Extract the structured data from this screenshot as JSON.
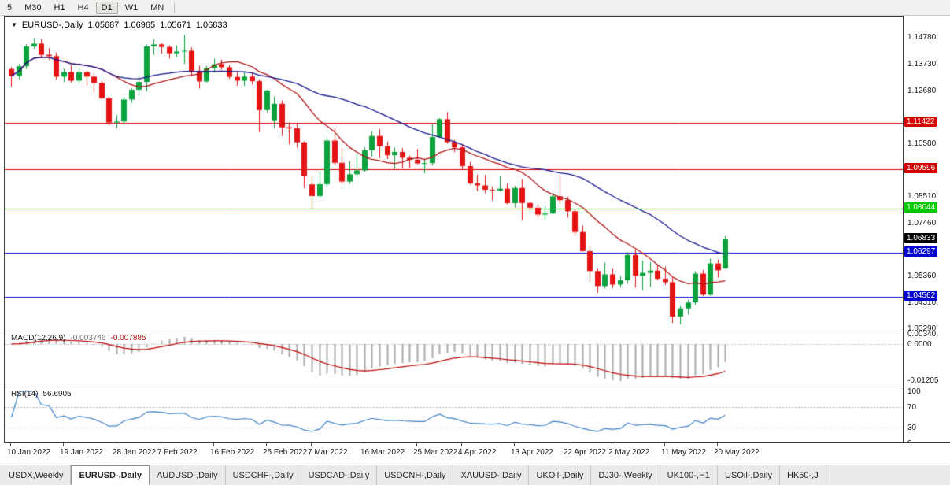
{
  "toolbar": {
    "timeframes": [
      "5",
      "M30",
      "H1",
      "H4",
      "D1",
      "W1",
      "MN"
    ],
    "active": "D1"
  },
  "icons": {
    "chart_menu": "▼"
  },
  "chart": {
    "title": {
      "symbol": "EURUSD-,Daily",
      "open": "1.05687",
      "high": "1.06965",
      "low": "1.05671",
      "close": "1.06833"
    },
    "price_axis": {
      "plain_labels": [
        {
          "text": "1.14780",
          "price": 1.1478
        },
        {
          "text": "1.13730",
          "price": 1.1373
        },
        {
          "text": "1.12680",
          "price": 1.1268
        },
        {
          "text": "1.10580",
          "price": 1.1058
        },
        {
          "text": "1.08510",
          "price": 1.0851
        },
        {
          "text": "1.07460",
          "price": 1.0746
        },
        {
          "text": "1.05360",
          "price": 1.0536
        },
        {
          "text": "1.04310",
          "price": 1.0431
        },
        {
          "text": "1.03290",
          "price": 1.0329
        }
      ],
      "line_labels": [
        {
          "text": "1.11422",
          "price": 1.11422,
          "color": "#D40000"
        },
        {
          "text": "1.09596",
          "price": 1.09596,
          "color": "#D40000"
        },
        {
          "text": "1.08044",
          "price": 1.08044,
          "color": "#00C800"
        },
        {
          "text": "1.06297",
          "price": 1.06297,
          "color": "#0000D2"
        },
        {
          "text": "1.04562",
          "price": 1.04562,
          "color": "#0000D2"
        }
      ],
      "current_label": {
        "text": "1.06833",
        "price": 1.06833,
        "color": "#000000"
      }
    }
  },
  "chart_data": {
    "type": "candlestick",
    "symbol": "EURUSD-,Daily",
    "timeframe": "Daily",
    "price_range": [
      1.032,
      1.1562
    ],
    "hlines": [
      {
        "price": 1.11422,
        "color": "#D40000"
      },
      {
        "price": 1.09596,
        "color": "#D40000"
      },
      {
        "price": 1.08044,
        "color": "#00C800"
      },
      {
        "price": 1.06297,
        "color": "#0000D2"
      },
      {
        "price": 1.04562,
        "color": "#0000D2"
      }
    ],
    "moving_averages": [
      {
        "window": 13,
        "color": "#B01414"
      },
      {
        "window": 30,
        "color": "#14148E"
      }
    ],
    "indicators": {
      "macd": {
        "fast": 12,
        "slow": 26,
        "signal": 9
      },
      "rsi": {
        "period": 14
      }
    },
    "ohlc": [
      [
        1.1355,
        1.1363,
        1.1285,
        1.1328
      ],
      [
        1.1328,
        1.1375,
        1.1314,
        1.1366
      ],
      [
        1.1366,
        1.1452,
        1.1355,
        1.1444
      ],
      [
        1.1444,
        1.1478,
        1.1435,
        1.1455
      ],
      [
        1.1455,
        1.1472,
        1.1398,
        1.1411
      ],
      [
        1.1411,
        1.1437,
        1.1391,
        1.1406
      ],
      [
        1.1406,
        1.142,
        1.1313,
        1.1325
      ],
      [
        1.1325,
        1.1358,
        1.1302,
        1.1343
      ],
      [
        1.1343,
        1.137,
        1.13,
        1.1309
      ],
      [
        1.1309,
        1.136,
        1.1295,
        1.1343
      ],
      [
        1.1343,
        1.1349,
        1.129,
        1.1325
      ],
      [
        1.1325,
        1.1338,
        1.1263,
        1.13
      ],
      [
        1.13,
        1.131,
        1.1234,
        1.124
      ],
      [
        1.124,
        1.1246,
        1.1131,
        1.1144
      ],
      [
        1.1144,
        1.1174,
        1.1121,
        1.1148
      ],
      [
        1.1148,
        1.1244,
        1.1135,
        1.1235
      ],
      [
        1.1235,
        1.1279,
        1.1222,
        1.1273
      ],
      [
        1.1273,
        1.133,
        1.1251,
        1.1304
      ],
      [
        1.1304,
        1.1451,
        1.1267,
        1.1444
      ],
      [
        1.1444,
        1.1472,
        1.1411,
        1.1452
      ],
      [
        1.1452,
        1.1458,
        1.1415,
        1.1442
      ],
      [
        1.1442,
        1.1448,
        1.1396,
        1.1417
      ],
      [
        1.1417,
        1.1448,
        1.1403,
        1.1424
      ],
      [
        1.1424,
        1.1489,
        1.1375,
        1.1427
      ],
      [
        1.1427,
        1.144,
        1.133,
        1.1348
      ],
      [
        1.1348,
        1.1369,
        1.1278,
        1.1306
      ],
      [
        1.1306,
        1.1368,
        1.1301,
        1.1358
      ],
      [
        1.1358,
        1.1396,
        1.1341,
        1.1374
      ],
      [
        1.1374,
        1.1392,
        1.1352,
        1.1362
      ],
      [
        1.1362,
        1.137,
        1.1316,
        1.1324
      ],
      [
        1.1324,
        1.1348,
        1.1288,
        1.1309
      ],
      [
        1.1309,
        1.1344,
        1.1287,
        1.1325
      ],
      [
        1.1325,
        1.1343,
        1.1294,
        1.1307
      ],
      [
        1.1307,
        1.1315,
        1.1106,
        1.1193
      ],
      [
        1.1193,
        1.1274,
        1.1184,
        1.127
      ],
      [
        1.115,
        1.1247,
        1.1122,
        1.1218
      ],
      [
        1.1218,
        1.1232,
        1.109,
        1.1125
      ],
      [
        1.1125,
        1.1144,
        1.1058,
        1.1121
      ],
      [
        1.1121,
        1.1139,
        1.1045,
        1.1066
      ],
      [
        1.1066,
        1.107,
        1.0886,
        1.0932
      ],
      [
        1.09,
        1.0932,
        1.0806,
        1.0854
      ],
      [
        1.0854,
        1.095,
        1.0846,
        1.0901
      ],
      [
        1.0901,
        1.1085,
        1.0892,
        1.1073
      ],
      [
        1.1073,
        1.1121,
        1.0978,
        1.0985
      ],
      [
        1.0985,
        1.1043,
        1.0901,
        1.0911
      ],
      [
        1.0911,
        1.0991,
        1.0902,
        1.094
      ],
      [
        1.094,
        1.1019,
        1.0931,
        1.0955
      ],
      [
        1.0955,
        1.1046,
        1.095,
        1.1035
      ],
      [
        1.1035,
        1.1109,
        1.1009,
        1.1091
      ],
      [
        1.1091,
        1.1119,
        1.1003,
        1.1051
      ],
      [
        1.1051,
        1.1069,
        1.1,
        1.1015
      ],
      [
        1.1015,
        1.1046,
        1.0961,
        1.1028
      ],
      [
        1.1028,
        1.1044,
        1.0963,
        1.1005
      ],
      [
        1.1005,
        1.1014,
        1.0965,
        1.0997
      ],
      [
        1.0997,
        1.1039,
        1.0979,
        1.0983
      ],
      [
        1.0983,
        1.0999,
        1.0944,
        1.0984
      ],
      [
        1.0984,
        1.1137,
        1.0975,
        1.1087
      ],
      [
        1.1087,
        1.1162,
        1.1084,
        1.1157
      ],
      [
        1.1157,
        1.1185,
        1.1061,
        1.1067
      ],
      [
        1.1067,
        1.1077,
        1.1027,
        1.1046
      ],
      [
        1.1046,
        1.1057,
        1.096,
        1.0972
      ],
      [
        1.0972,
        1.0989,
        1.0899,
        1.0905
      ],
      [
        1.0905,
        1.0938,
        1.0874,
        1.0896
      ],
      [
        1.0896,
        1.0938,
        1.0865,
        1.0879
      ],
      [
        1.0879,
        1.0892,
        1.0837,
        1.0876
      ],
      [
        1.0876,
        1.0933,
        1.0872,
        1.0883
      ],
      [
        1.0883,
        1.0904,
        1.0821,
        1.0826
      ],
      [
        1.0826,
        1.0895,
        1.0809,
        1.0886
      ],
      [
        1.0886,
        1.0922,
        1.0757,
        1.0827
      ],
      [
        1.0827,
        1.0832,
        1.0797,
        1.0808
      ],
      [
        1.0808,
        1.0822,
        1.077,
        1.0781
      ],
      [
        1.0781,
        1.0815,
        1.0761,
        1.0785
      ],
      [
        1.0785,
        1.0867,
        1.0783,
        1.0853
      ],
      [
        1.0853,
        1.0937,
        1.0824,
        1.0838
      ],
      [
        1.0838,
        1.0852,
        1.077,
        1.0794
      ],
      [
        1.0794,
        1.0804,
        1.0697,
        1.0712
      ],
      [
        1.0712,
        1.0738,
        1.0635,
        1.0637
      ],
      [
        1.0637,
        1.0655,
        1.0514,
        1.0558
      ],
      [
        1.0558,
        1.0568,
        1.0471,
        1.0499
      ],
      [
        1.0499,
        1.0592,
        1.049,
        1.0545
      ],
      [
        1.0545,
        1.0567,
        1.0491,
        1.0505
      ],
      [
        1.0505,
        1.0539,
        1.0493,
        1.0522
      ],
      [
        1.0522,
        1.0632,
        1.0507,
        1.0622
      ],
      [
        1.0622,
        1.0642,
        1.0493,
        1.054
      ],
      [
        1.054,
        1.0599,
        1.0483,
        1.0551
      ],
      [
        1.0551,
        1.0594,
        1.0495,
        1.056
      ],
      [
        1.056,
        1.0585,
        1.0522,
        1.0528
      ],
      [
        1.0528,
        1.0576,
        1.0503,
        1.0514
      ],
      [
        1.0514,
        1.0532,
        1.0354,
        1.0379
      ],
      [
        1.0379,
        1.042,
        1.0348,
        1.0411
      ],
      [
        1.0411,
        1.0445,
        1.0387,
        1.0434
      ],
      [
        1.0434,
        1.0557,
        1.0424,
        1.0548
      ],
      [
        1.0548,
        1.0564,
        1.0459,
        1.0465
      ],
      [
        1.0465,
        1.0607,
        1.0461,
        1.0588
      ],
      [
        1.0588,
        1.0604,
        1.0532,
        1.0561
      ],
      [
        1.05687,
        1.06965,
        1.05671,
        1.06833
      ]
    ],
    "date_ticks": [
      {
        "idx": 0,
        "label": "10 Jan 2022"
      },
      {
        "idx": 7,
        "label": "19 Jan 2022"
      },
      {
        "idx": 14,
        "label": "28 Jan 2022"
      },
      {
        "idx": 20,
        "label": "7 Feb 2022"
      },
      {
        "idx": 27,
        "label": "16 Feb 2022"
      },
      {
        "idx": 34,
        "label": "25 Feb 2022"
      },
      {
        "idx": 40,
        "label": "7 Mar 2022"
      },
      {
        "idx": 47,
        "label": "16 Mar 2022"
      },
      {
        "idx": 54,
        "label": "25 Mar 2022"
      },
      {
        "idx": 60,
        "label": "4 Apr 2022"
      },
      {
        "idx": 67,
        "label": "13 Apr 2022"
      },
      {
        "idx": 74,
        "label": "22 Apr 2022"
      },
      {
        "idx": 80,
        "label": "2 May 2022"
      },
      {
        "idx": 87,
        "label": "11 May 2022"
      },
      {
        "idx": 94,
        "label": "20 May 2022"
      }
    ]
  },
  "macd": {
    "label": "MACD(12,26,9)",
    "main_value": "-0.003746",
    "signal_value": "-0.007885",
    "axis": [
      {
        "text": "0.00340",
        "value": 0.0034
      },
      {
        "text": "0.0000",
        "value": 0
      },
      {
        "text": "-0.01205",
        "value": -0.01205
      }
    ]
  },
  "rsi": {
    "label": "RSI(14)",
    "value": "56.6905",
    "levels": [
      70,
      30
    ],
    "axis": [
      {
        "text": "100",
        "value": 100
      },
      {
        "text": "70",
        "value": 70
      },
      {
        "text": "30",
        "value": 30
      },
      {
        "text": "0",
        "value": 0
      }
    ]
  },
  "tabs": [
    {
      "label": "USDX,Weekly",
      "active": false
    },
    {
      "label": "EURUSD-,Daily",
      "active": true
    },
    {
      "label": "AUDUSD-,Daily",
      "active": false
    },
    {
      "label": "USDCHF-,Daily",
      "active": false
    },
    {
      "label": "USDCAD-,Daily",
      "active": false
    },
    {
      "label": "USDCNH-,Daily",
      "active": false
    },
    {
      "label": "XAUUSD-,Daily",
      "active": false
    },
    {
      "label": "UKOil-,Daily",
      "active": false
    },
    {
      "label": "DJ30-,Weekly",
      "active": false
    },
    {
      "label": "UK100-,H1",
      "active": false
    },
    {
      "label": "USOil-,Daily",
      "active": false
    },
    {
      "label": "HK50-,J",
      "active": false
    }
  ],
  "colors": {
    "candle_up": "#0AA23C",
    "candle_down": "#E41414",
    "macd_hist": "#A9A9A9",
    "macd_signal": "#C00000",
    "rsi_line": "#4080C8",
    "level_dash": "#ADADAD",
    "current_price_bg": "#000000"
  }
}
